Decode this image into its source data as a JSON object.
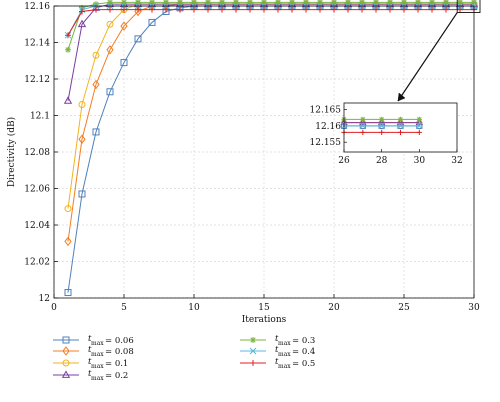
{
  "chart_data": [
    {
      "type": "line",
      "xlabel": "Iterations",
      "ylabel": "Directivity (dB)",
      "xlim": [
        0,
        30
      ],
      "ylim": [
        12,
        12.16
      ],
      "xticks": [
        "0",
        "5",
        "10",
        "15",
        "20",
        "25",
        "30"
      ],
      "yticks": [
        "12",
        "12.02",
        "12.04",
        "12.06",
        "12.08",
        "12.1",
        "12.12",
        "12.14",
        "12.16"
      ],
      "grid": true,
      "legend_position": "below",
      "x": [
        1,
        2,
        3,
        4,
        5,
        6,
        7,
        8,
        9,
        10,
        11,
        12,
        13,
        14,
        15,
        16,
        17,
        18,
        19,
        20,
        21,
        22,
        23,
        24,
        25,
        26,
        27,
        28,
        29,
        30
      ],
      "series": [
        {
          "name_var": "t",
          "name_sub": "max",
          "name_val": "= 0.06",
          "color": "#4f81bd",
          "marker": "square",
          "values": [
            12.003,
            12.057,
            12.091,
            12.113,
            12.129,
            12.142,
            12.151,
            12.157,
            12.159,
            12.16,
            12.16,
            12.16,
            12.16,
            12.16,
            12.16,
            12.16,
            12.16,
            12.16,
            12.16,
            12.16,
            12.16,
            12.16,
            12.16,
            12.16,
            12.16,
            12.16,
            12.16,
            12.16,
            12.16,
            12.16
          ]
        },
        {
          "name_var": "t",
          "name_sub": "max",
          "name_val": "= 0.08",
          "color": "#f47c20",
          "marker": "diamond",
          "values": [
            12.031,
            12.087,
            12.117,
            12.136,
            12.149,
            12.157,
            12.16,
            12.16,
            12.161,
            12.161,
            12.161,
            12.161,
            12.161,
            12.161,
            12.161,
            12.161,
            12.161,
            12.161,
            12.161,
            12.161,
            12.161,
            12.161,
            12.161,
            12.161,
            12.161,
            12.161,
            12.161,
            12.161,
            12.161,
            12.161
          ]
        },
        {
          "name_var": "t",
          "name_sub": "max",
          "name_val": "= 0.1",
          "color": "#f2b31d",
          "marker": "circle",
          "values": [
            12.049,
            12.106,
            12.133,
            12.15,
            12.158,
            12.161,
            12.161,
            12.161,
            12.161,
            12.161,
            12.161,
            12.161,
            12.161,
            12.161,
            12.161,
            12.161,
            12.161,
            12.161,
            12.161,
            12.161,
            12.161,
            12.161,
            12.161,
            12.161,
            12.161,
            12.161,
            12.161,
            12.161,
            12.161,
            12.161
          ]
        },
        {
          "name_var": "t",
          "name_sub": "max",
          "name_val": "= 0.2",
          "color": "#7a3fa0",
          "marker": "triangle",
          "values": [
            12.108,
            12.15,
            12.159,
            12.161,
            12.161,
            12.161,
            12.161,
            12.161,
            12.161,
            12.161,
            12.161,
            12.161,
            12.161,
            12.161,
            12.161,
            12.161,
            12.161,
            12.161,
            12.161,
            12.161,
            12.161,
            12.161,
            12.161,
            12.161,
            12.161,
            12.161,
            12.161,
            12.161,
            12.161,
            12.161
          ]
        },
        {
          "name_var": "t",
          "name_sub": "max",
          "name_val": "= 0.3",
          "color": "#7cb342",
          "marker": "asterisk",
          "values": [
            12.136,
            12.159,
            12.161,
            12.162,
            12.162,
            12.162,
            12.162,
            12.162,
            12.162,
            12.162,
            12.162,
            12.162,
            12.162,
            12.162,
            12.162,
            12.162,
            12.162,
            12.162,
            12.162,
            12.162,
            12.162,
            12.162,
            12.162,
            12.162,
            12.162,
            12.162,
            12.162,
            12.162,
            12.162,
            12.162
          ]
        },
        {
          "name_var": "t",
          "name_sub": "max",
          "name_val": "= 0.4",
          "color": "#5bb8d8",
          "marker": "x",
          "values": [
            12.144,
            12.158,
            12.16,
            12.16,
            12.16,
            12.16,
            12.16,
            12.16,
            12.16,
            12.16,
            12.16,
            12.16,
            12.16,
            12.16,
            12.16,
            12.16,
            12.16,
            12.16,
            12.16,
            12.16,
            12.16,
            12.16,
            12.16,
            12.16,
            12.16,
            12.16,
            12.16,
            12.16,
            12.16,
            12.16
          ]
        },
        {
          "name_var": "t",
          "name_sub": "max",
          "name_val": "= 0.5",
          "color": "#e02020",
          "marker": "plus",
          "values": [
            12.144,
            12.157,
            12.158,
            12.158,
            12.158,
            12.158,
            12.158,
            12.158,
            12.158,
            12.158,
            12.158,
            12.158,
            12.158,
            12.158,
            12.158,
            12.158,
            12.158,
            12.158,
            12.158,
            12.158,
            12.158,
            12.158,
            12.158,
            12.158,
            12.158,
            12.158,
            12.158,
            12.158,
            12.158,
            12.158
          ]
        }
      ]
    },
    {
      "type": "line",
      "role": "inset",
      "xlim": [
        26,
        32
      ],
      "ylim": [
        12.152,
        12.167
      ],
      "xticks": [
        "26",
        "28",
        "30",
        "32"
      ],
      "yticks": [
        "12.155",
        "12.16",
        "12.165"
      ],
      "x": [
        26,
        27,
        28,
        29,
        30
      ],
      "series": [
        {
          "color": "#4f81bd",
          "marker": "square",
          "values": [
            12.16,
            12.16,
            12.16,
            12.16,
            12.16
          ]
        },
        {
          "color": "#f47c20",
          "marker": "diamond",
          "values": [
            12.161,
            12.161,
            12.161,
            12.161,
            12.161
          ]
        },
        {
          "color": "#f2b31d",
          "marker": "circle",
          "values": [
            12.161,
            12.161,
            12.161,
            12.161,
            12.161
          ]
        },
        {
          "color": "#7a3fa0",
          "marker": "triangle",
          "values": [
            12.161,
            12.161,
            12.161,
            12.161,
            12.161
          ]
        },
        {
          "color": "#7cb342",
          "marker": "asterisk",
          "values": [
            12.162,
            12.162,
            12.162,
            12.162,
            12.162
          ]
        },
        {
          "color": "#5bb8d8",
          "marker": "x",
          "values": [
            12.16,
            12.16,
            12.16,
            12.16,
            12.16
          ]
        },
        {
          "color": "#e02020",
          "marker": "plus",
          "values": [
            12.158,
            12.158,
            12.158,
            12.158,
            12.158
          ]
        }
      ]
    }
  ]
}
